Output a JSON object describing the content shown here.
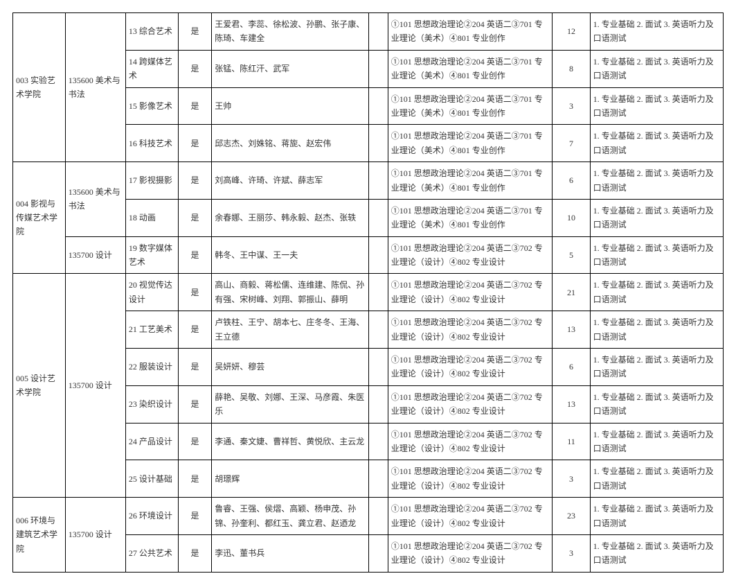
{
  "exam_art": "①101 思想政治理论②204 英语二③701 专业理论（美术）④801 专业创作",
  "exam_design": "①101 思想政治理论②204 英语二③702 专业理论（设计）④802 专业设计",
  "note_common": "1. 专业基础 2. 面试 3. 英语听力及口语测试",
  "yes": "是",
  "majors": {
    "art": "135600 美术与书法",
    "design": "135700 设计"
  },
  "depts": {
    "d003": "003 实验艺术学院",
    "d004": "004 影视与传媒艺术学院",
    "d005": "005 设计艺术学院",
    "d006": "006 环境与建筑艺术学院"
  },
  "rows": [
    {
      "dir": "13 综合艺术",
      "teachers": "王爱君、李蕊、徐松波、孙鹏、张子康、陈琦、车建全",
      "num": "12"
    },
    {
      "dir": "14 跨媒体艺术",
      "teachers": "张锰、陈红汗、武军",
      "num": "8"
    },
    {
      "dir": "15 影像艺术",
      "teachers": "王帅",
      "num": "3"
    },
    {
      "dir": "16 科技艺术",
      "teachers": "邱志杰、刘姝铭、蒋旎、赵宏伟",
      "num": "7"
    },
    {
      "dir": "17 影视摄影",
      "teachers": "刘高峰、许琦、许斌、薛志军",
      "num": "6"
    },
    {
      "dir": "18 动画",
      "teachers": "余春娜、王丽莎、韩永毅、赵杰、张轶",
      "num": "10"
    },
    {
      "dir": "19 数字媒体艺术",
      "teachers": "韩冬、王中谋、王一夫",
      "num": "5"
    },
    {
      "dir": "20 视觉传达设计",
      "teachers": "高山、商毅、蒋松儒、连维建、陈侃、孙有强、宋树峰、刘翔、郭振山、薛明",
      "num": "21"
    },
    {
      "dir": "21 工艺美术",
      "teachers": "卢铁柱、王宁、胡本七、庄冬冬、王海、王立德",
      "num": "13"
    },
    {
      "dir": "22 服装设计",
      "teachers": "吴妍妍、穆芸",
      "num": "6"
    },
    {
      "dir": "23 染织设计",
      "teachers": "薛艳、吴敬、刘娜、王深、马彦霞、朱医乐",
      "num": "13"
    },
    {
      "dir": "24 产品设计",
      "teachers": "李通、秦文婕、曹祥哲、黄悦欣、主云龙",
      "num": "11"
    },
    {
      "dir": "25 设计基础",
      "teachers": "胡璟辉",
      "num": "3"
    },
    {
      "dir": "26 环境设计",
      "teachers": "鲁睿、王强、侯熠、高颖、杨申茂、孙锦、孙奎利、都红玉、龚立君、赵迺龙",
      "num": "23"
    },
    {
      "dir": "27 公共艺术",
      "teachers": "李迅、董书兵",
      "num": "3"
    }
  ]
}
